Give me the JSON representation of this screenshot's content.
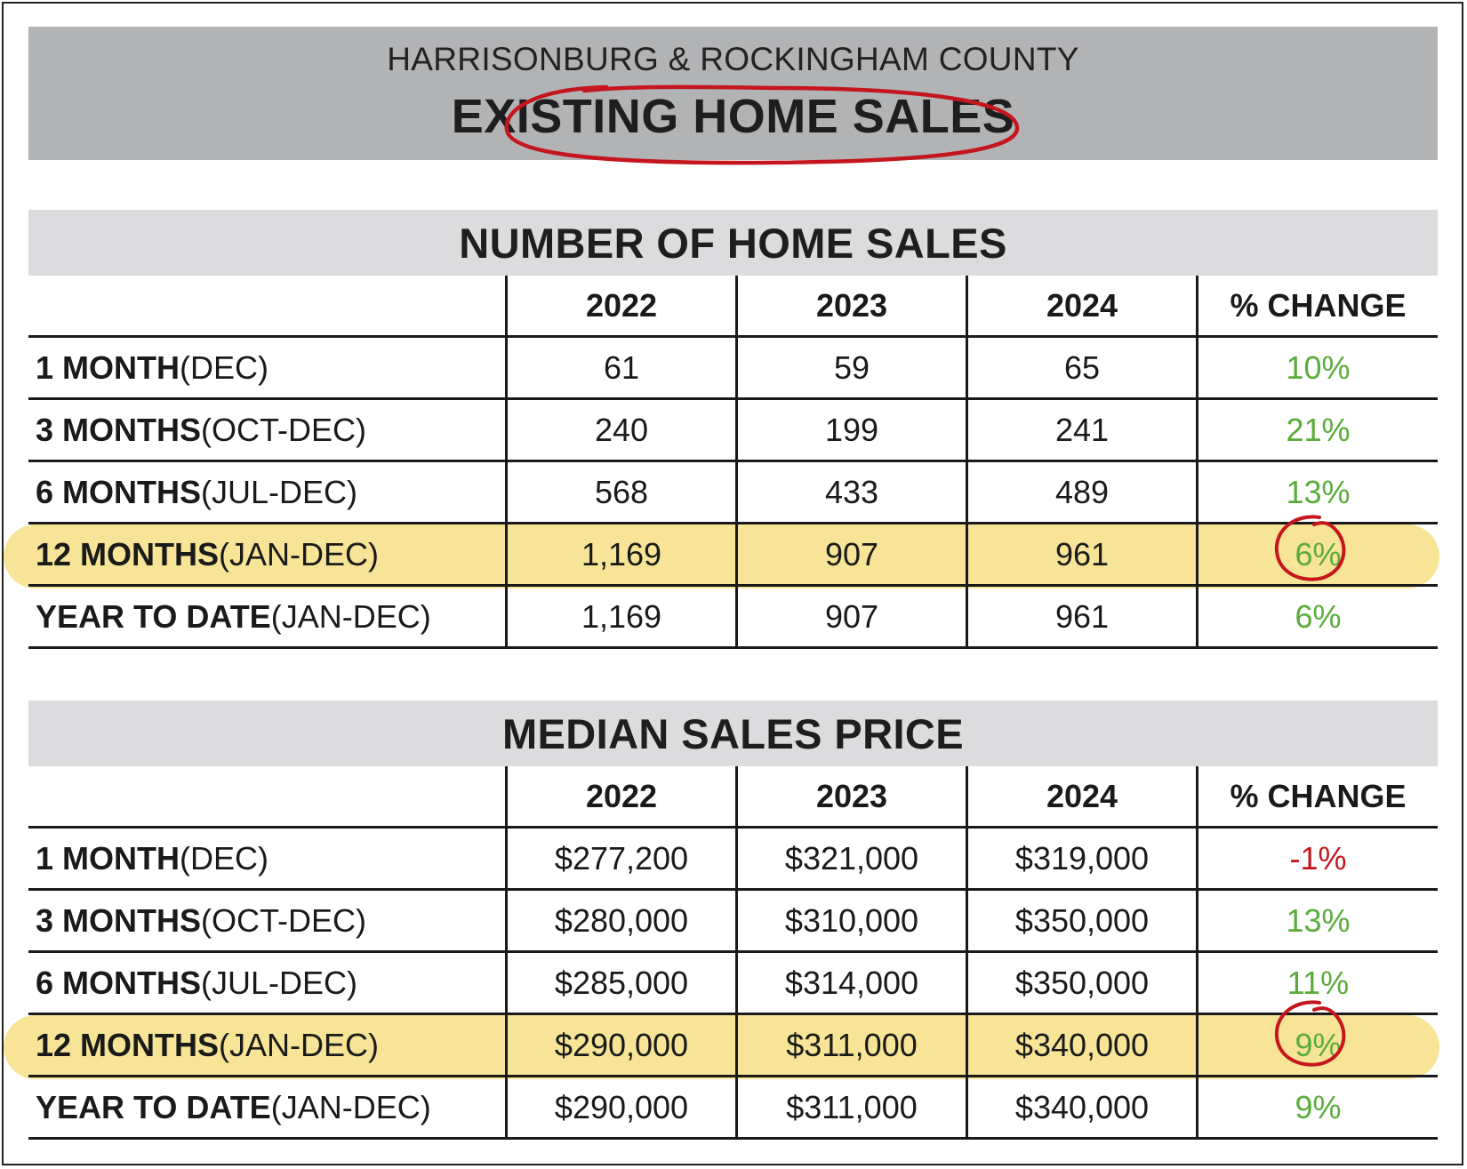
{
  "header": {
    "subtitle": "HARRISONBURG & ROCKINGHAM COUNTY",
    "title": "EXISTING HOME SALES"
  },
  "colors": {
    "header_band": "#b2b3b5",
    "section_band": "#dcdcde",
    "highlight": "#f7e28e",
    "positive": "#5aac3a",
    "negative": "#c4161c",
    "annotation": "#c4161c"
  },
  "sales": {
    "title": "NUMBER OF HOME SALES",
    "columns": [
      "2022",
      "2023",
      "2024",
      "% CHANGE"
    ],
    "rows": [
      {
        "label_bold": "1 MONTH",
        "label_rest": " (DEC)",
        "v2022": "61",
        "v2023": "59",
        "v2024": "65",
        "change": "10%"
      },
      {
        "label_bold": "3 MONTHS",
        "label_rest": " (OCT-DEC)",
        "v2022": "240",
        "v2023": "199",
        "v2024": "241",
        "change": "21%"
      },
      {
        "label_bold": "6 MONTHS",
        "label_rest": " (JUL-DEC)",
        "v2022": "568",
        "v2023": "433",
        "v2024": "489",
        "change": "13%"
      },
      {
        "label_bold": "12 MONTHS",
        "label_rest": " (JAN-DEC)",
        "v2022": "1,169",
        "v2023": "907",
        "v2024": "961",
        "change": "6%"
      },
      {
        "label_bold": "YEAR TO DATE",
        "label_rest": " (JAN-DEC)",
        "v2022": "1,169",
        "v2023": "907",
        "v2024": "961",
        "change": "6%"
      }
    ]
  },
  "price": {
    "title": "MEDIAN SALES PRICE",
    "columns": [
      "2022",
      "2023",
      "2024",
      "% CHANGE"
    ],
    "rows": [
      {
        "label_bold": "1 MONTH",
        "label_rest": " (DEC)",
        "v2022": "$277,200",
        "v2023": "$321,000",
        "v2024": "$319,000",
        "change": "-1%"
      },
      {
        "label_bold": "3 MONTHS",
        "label_rest": " (OCT-DEC)",
        "v2022": "$280,000",
        "v2023": "$310,000",
        "v2024": "$350,000",
        "change": "13%"
      },
      {
        "label_bold": "6 MONTHS",
        "label_rest": " (JUL-DEC)",
        "v2022": "$285,000",
        "v2023": "$314,000",
        "v2024": "$350,000",
        "change": "11%"
      },
      {
        "label_bold": "12 MONTHS",
        "label_rest": " (JAN-DEC)",
        "v2022": "$290,000",
        "v2023": "$311,000",
        "v2024": "$340,000",
        "change": "9%"
      },
      {
        "label_bold": "YEAR TO DATE",
        "label_rest": " (JAN-DEC)",
        "v2022": "$290,000",
        "v2023": "$311,000",
        "v2024": "$340,000",
        "change": "9%"
      }
    ]
  }
}
